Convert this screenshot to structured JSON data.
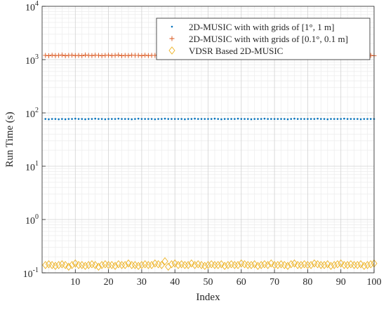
{
  "chart_data": {
    "type": "scatter",
    "title": "",
    "xlabel": "Index",
    "ylabel": "Run Time (s)",
    "xlim": [
      0,
      100
    ],
    "ylim": [
      0.1,
      10000
    ],
    "yscale": "log",
    "grid": "major-and-minor",
    "legend_position": "top-right",
    "x_ticks": [
      "10",
      "20",
      "30",
      "40",
      "50",
      "60",
      "70",
      "80",
      "90",
      "100"
    ],
    "y_ticks": [
      {
        "base": "10",
        "exp": "-1",
        "value": 0.1
      },
      {
        "base": "10",
        "exp": "0",
        "value": 1
      },
      {
        "base": "10",
        "exp": "1",
        "value": 10
      },
      {
        "base": "10",
        "exp": "2",
        "value": 100
      },
      {
        "base": "10",
        "exp": "3",
        "value": 1000
      },
      {
        "base": "10",
        "exp": "4",
        "value": 10000
      }
    ],
    "x": [
      1,
      2,
      3,
      4,
      5,
      6,
      7,
      8,
      9,
      10,
      11,
      12,
      13,
      14,
      15,
      16,
      17,
      18,
      19,
      20,
      21,
      22,
      23,
      24,
      25,
      26,
      27,
      28,
      29,
      30,
      31,
      32,
      33,
      34,
      35,
      36,
      37,
      38,
      39,
      40,
      41,
      42,
      43,
      44,
      45,
      46,
      47,
      48,
      49,
      50,
      51,
      52,
      53,
      54,
      55,
      56,
      57,
      58,
      59,
      60,
      61,
      62,
      63,
      64,
      65,
      66,
      67,
      68,
      69,
      70,
      71,
      72,
      73,
      74,
      75,
      76,
      77,
      78,
      79,
      80,
      81,
      82,
      83,
      84,
      85,
      86,
      87,
      88,
      89,
      90,
      91,
      92,
      93,
      94,
      95,
      96,
      97,
      98,
      99,
      100
    ],
    "series": [
      {
        "name": "2D-MUSIC with with grids of [1°, 1 m]",
        "marker": "dot",
        "color": "#0072BD",
        "values": [
          77,
          76,
          77,
          77,
          76,
          77,
          76,
          77,
          77,
          78,
          77,
          77,
          76,
          77,
          77,
          78,
          77,
          77,
          76,
          77,
          77,
          77,
          78,
          77,
          77,
          77,
          76,
          77,
          78,
          77,
          77,
          77,
          77,
          76,
          77,
          77,
          78,
          77,
          77,
          77,
          77,
          77,
          76,
          77,
          77,
          78,
          77,
          77,
          77,
          77,
          77,
          78,
          77,
          76,
          77,
          77,
          77,
          77,
          78,
          77,
          77,
          77,
          76,
          77,
          77,
          77,
          78,
          77,
          77,
          77,
          77,
          77,
          77,
          76,
          77,
          78,
          77,
          77,
          77,
          77,
          77,
          77,
          78,
          77,
          77,
          76,
          77,
          77,
          77,
          77,
          78,
          77,
          77,
          77,
          77,
          76,
          77,
          77,
          77,
          77
        ]
      },
      {
        "name": "2D-MUSIC with with grids of [0.1°, 0.1 m]",
        "marker": "plus",
        "color": "#D95319",
        "values": [
          1200,
          1180,
          1210,
          1190,
          1200,
          1220,
          1180,
          1200,
          1210,
          1190,
          1200,
          1180,
          1220,
          1200,
          1190,
          1210,
          1200,
          1180,
          1200,
          1210,
          1190,
          1200,
          1220,
          1180,
          1200,
          1190,
          1210,
          1200,
          1200,
          1180,
          1210,
          1190,
          1200,
          1200,
          1220,
          1180,
          1200,
          1190,
          1210,
          1200,
          1200,
          1180,
          1210,
          1200,
          1190,
          1200,
          1220,
          1200,
          1180,
          1200,
          1210,
          1190,
          1200,
          1200,
          1180,
          1210,
          1200,
          1190,
          1200,
          1220,
          1200,
          1180,
          1200,
          1210,
          1190,
          1200,
          1200,
          1180,
          1210,
          1200,
          1190,
          1200,
          1220,
          1200,
          1180,
          1200,
          1210,
          1190,
          1200,
          1200,
          1180,
          1210,
          1200,
          1190,
          1200,
          1220,
          1200,
          1180,
          1200,
          1210,
          1190,
          1200,
          1200,
          1180,
          1210,
          1200,
          1190,
          1200,
          1200,
          1180
        ]
      },
      {
        "name": "VDSR Based 2D-MUSIC",
        "marker": "diamond",
        "color": "#EDB120",
        "values": [
          0.14,
          0.145,
          0.14,
          0.135,
          0.14,
          0.145,
          0.14,
          0.13,
          0.14,
          0.15,
          0.14,
          0.14,
          0.135,
          0.14,
          0.145,
          0.14,
          0.13,
          0.14,
          0.145,
          0.14,
          0.14,
          0.135,
          0.145,
          0.14,
          0.14,
          0.15,
          0.14,
          0.14,
          0.135,
          0.14,
          0.145,
          0.14,
          0.14,
          0.15,
          0.145,
          0.14,
          0.165,
          0.13,
          0.145,
          0.15,
          0.14,
          0.145,
          0.14,
          0.14,
          0.15,
          0.14,
          0.145,
          0.14,
          0.135,
          0.14,
          0.145,
          0.14,
          0.14,
          0.145,
          0.135,
          0.14,
          0.145,
          0.14,
          0.14,
          0.15,
          0.145,
          0.14,
          0.14,
          0.145,
          0.135,
          0.14,
          0.145,
          0.14,
          0.15,
          0.14,
          0.14,
          0.145,
          0.14,
          0.135,
          0.145,
          0.15,
          0.14,
          0.14,
          0.145,
          0.14,
          0.14,
          0.15,
          0.145,
          0.14,
          0.14,
          0.145,
          0.135,
          0.14,
          0.145,
          0.15,
          0.14,
          0.14,
          0.145,
          0.14,
          0.14,
          0.145,
          0.135,
          0.14,
          0.145,
          0.15
        ]
      }
    ]
  }
}
